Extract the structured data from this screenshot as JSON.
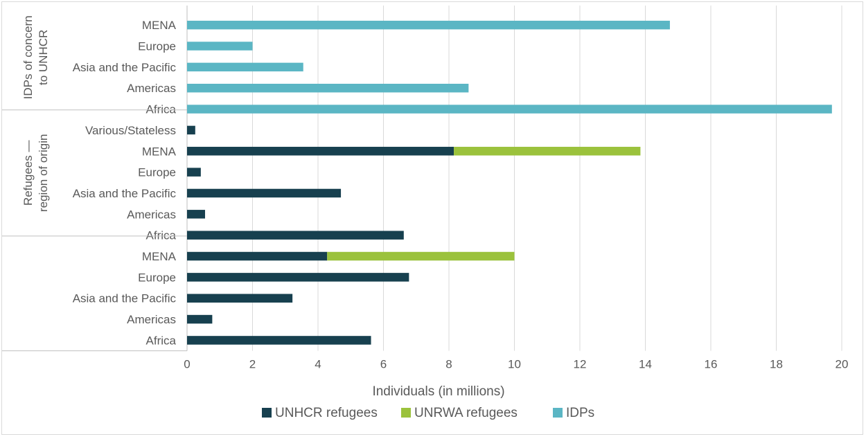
{
  "chart_data": {
    "type": "bar",
    "orientation": "horizontal",
    "stacked": true,
    "xlabel": "Individuals (in millions)",
    "xlim": [
      0,
      20
    ],
    "xticks": [
      0,
      2,
      4,
      6,
      8,
      10,
      12,
      14,
      16,
      18,
      20
    ],
    "grid": true,
    "legend_position": "bottom",
    "series_meta": [
      {
        "key": "unhcr",
        "name": "UNHCR refugees",
        "color": "#17404f"
      },
      {
        "key": "unrwa",
        "name": "UNRWA refugees",
        "color": "#9bc23c"
      },
      {
        "key": "idps",
        "name": "IDPs",
        "color": "#5bb6c4"
      }
    ],
    "groups": [
      {
        "label": "IDPs of concern to UNHCR",
        "label_lines": [
          "IDPs of concern",
          "to UNHCR"
        ],
        "rows": [
          {
            "category": "MENA",
            "unhcr": 0,
            "unrwa": 0,
            "idps": 14.75
          },
          {
            "category": "Europe",
            "unhcr": 0,
            "unrwa": 0,
            "idps": 2.0
          },
          {
            "category": "Asia and the Pacific",
            "unhcr": 0,
            "unrwa": 0,
            "idps": 3.55
          },
          {
            "category": "Americas",
            "unhcr": 0,
            "unrwa": 0,
            "idps": 8.6
          },
          {
            "category": "Africa",
            "unhcr": 0,
            "unrwa": 0,
            "idps": 19.7
          }
        ]
      },
      {
        "label": "Refugees — region of origin",
        "label_lines": [
          "Refugees —",
          "region of origin"
        ],
        "rows": [
          {
            "category": "Various/Stateless",
            "unhcr": 0.25,
            "unrwa": 0,
            "idps": 0
          },
          {
            "category": "MENA",
            "unhcr": 8.15,
            "unrwa": 5.7,
            "idps": 0
          },
          {
            "category": "Europe",
            "unhcr": 0.42,
            "unrwa": 0,
            "idps": 0
          },
          {
            "category": "Asia and the Pacific",
            "unhcr": 4.7,
            "unrwa": 0,
            "idps": 0
          },
          {
            "category": "Americas",
            "unhcr": 0.55,
            "unrwa": 0,
            "idps": 0
          },
          {
            "category": "Africa",
            "unhcr": 6.62,
            "unrwa": 0,
            "idps": 0
          }
        ]
      },
      {
        "label": "",
        "label_lines": [],
        "rows": [
          {
            "category": "MENA",
            "unhcr": 4.28,
            "unrwa": 5.72,
            "idps": 0
          },
          {
            "category": "Europe",
            "unhcr": 6.78,
            "unrwa": 0,
            "idps": 0
          },
          {
            "category": "Asia and the Pacific",
            "unhcr": 3.22,
            "unrwa": 0,
            "idps": 0
          },
          {
            "category": "Americas",
            "unhcr": 0.77,
            "unrwa": 0,
            "idps": 0
          },
          {
            "category": "Africa",
            "unhcr": 5.62,
            "unrwa": 0,
            "idps": 0
          }
        ]
      }
    ]
  }
}
